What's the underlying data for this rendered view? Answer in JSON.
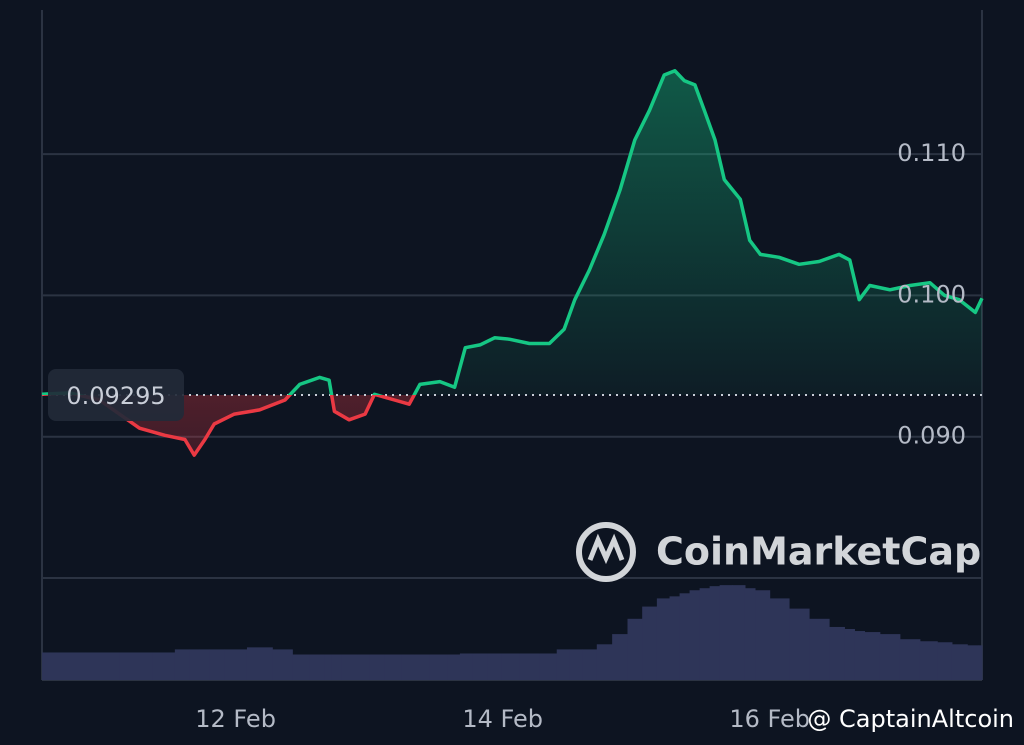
{
  "chart_data": {
    "type": "line",
    "x": [
      10.55,
      10.76,
      10.98,
      11.28,
      11.47,
      11.62,
      11.69,
      11.77,
      11.84,
      11.99,
      12.18,
      12.37,
      12.48,
      12.63,
      12.7,
      12.74,
      12.85,
      12.97,
      13.04,
      13.19,
      13.3,
      13.38,
      13.53,
      13.64,
      13.72,
      13.83,
      13.94,
      14.05,
      14.2,
      14.35,
      14.46,
      14.54,
      14.65,
      14.76,
      14.88,
      14.99,
      15.1,
      15.21,
      15.29,
      15.36,
      15.44,
      15.51,
      15.59,
      15.66,
      15.78,
      15.85,
      15.93,
      16.07,
      16.22,
      16.37,
      16.52,
      16.6,
      16.67,
      16.75,
      16.9,
      17.05,
      17.2,
      17.31,
      17.42,
      17.54,
      17.59
    ],
    "values": [
      0.093,
      0.0931,
      0.0926,
      0.0906,
      0.0901,
      0.0898,
      0.0887,
      0.0898,
      0.0909,
      0.0916,
      0.0919,
      0.0926,
      0.0937,
      0.0942,
      0.094,
      0.0918,
      0.0912,
      0.0916,
      0.093,
      0.0926,
      0.0923,
      0.0937,
      0.0939,
      0.0935,
      0.0963,
      0.0965,
      0.097,
      0.0969,
      0.0966,
      0.0966,
      0.0976,
      0.0997,
      0.1018,
      0.1043,
      0.1075,
      0.111,
      0.1131,
      0.1156,
      0.1159,
      0.1152,
      0.1149,
      0.1131,
      0.111,
      0.1082,
      0.1068,
      0.1039,
      0.1029,
      0.1027,
      0.1022,
      0.1024,
      0.1029,
      0.1025,
      0.0997,
      0.1007,
      0.1004,
      0.1007,
      0.1009,
      0.1,
      0.0997,
      0.0988,
      0.0998
    ],
    "volume": [
      27,
      27,
      27,
      27,
      27,
      30,
      30,
      30,
      30,
      30,
      32,
      30,
      25,
      25,
      25,
      25,
      25,
      25,
      25,
      25,
      25,
      25,
      25,
      25,
      26,
      26,
      26,
      26,
      26,
      26,
      30,
      30,
      30,
      35,
      45,
      60,
      72,
      80,
      82,
      85,
      88,
      90,
      92,
      93,
      93,
      90,
      88,
      80,
      70,
      60,
      52,
      50,
      48,
      47,
      45,
      40,
      38,
      37,
      35,
      34,
      34
    ],
    "volume_lim": [
      0,
      100
    ],
    "volume_color": "#2e3558",
    "baseline": 0.09295,
    "up_color": "#16c784",
    "down_color": "#ea3943",
    "xlim": [
      10.55,
      17.59
    ],
    "xticks": [
      {
        "value": 12,
        "label": "12 Feb"
      },
      {
        "value": 14,
        "label": "14 Feb"
      },
      {
        "value": 16,
        "label": "16 Feb"
      }
    ],
    "ylim": [
      0.08,
      0.1202
    ],
    "yticks": [
      {
        "value": 0.09,
        "label": "0.090"
      },
      {
        "value": 0.1,
        "label": "0.100"
      },
      {
        "value": 0.11,
        "label": "0.110"
      }
    ],
    "grid": true,
    "watermark": "CoinMarketCap",
    "credit": "@ CaptainAltcoin"
  }
}
